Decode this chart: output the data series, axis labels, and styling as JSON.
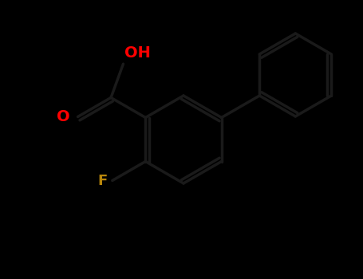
{
  "background_color": "#000000",
  "bond_color": "#1a1a1a",
  "O_color": "#ff0000",
  "F_color": "#b8860b",
  "bond_width": 2.5,
  "figsize": [
    4.55,
    3.5
  ],
  "dpi": 100,
  "label_OH": "OH",
  "label_O": "O",
  "label_F": "F",
  "OH_fontsize": 14,
  "O_fontsize": 14,
  "F_fontsize": 13
}
